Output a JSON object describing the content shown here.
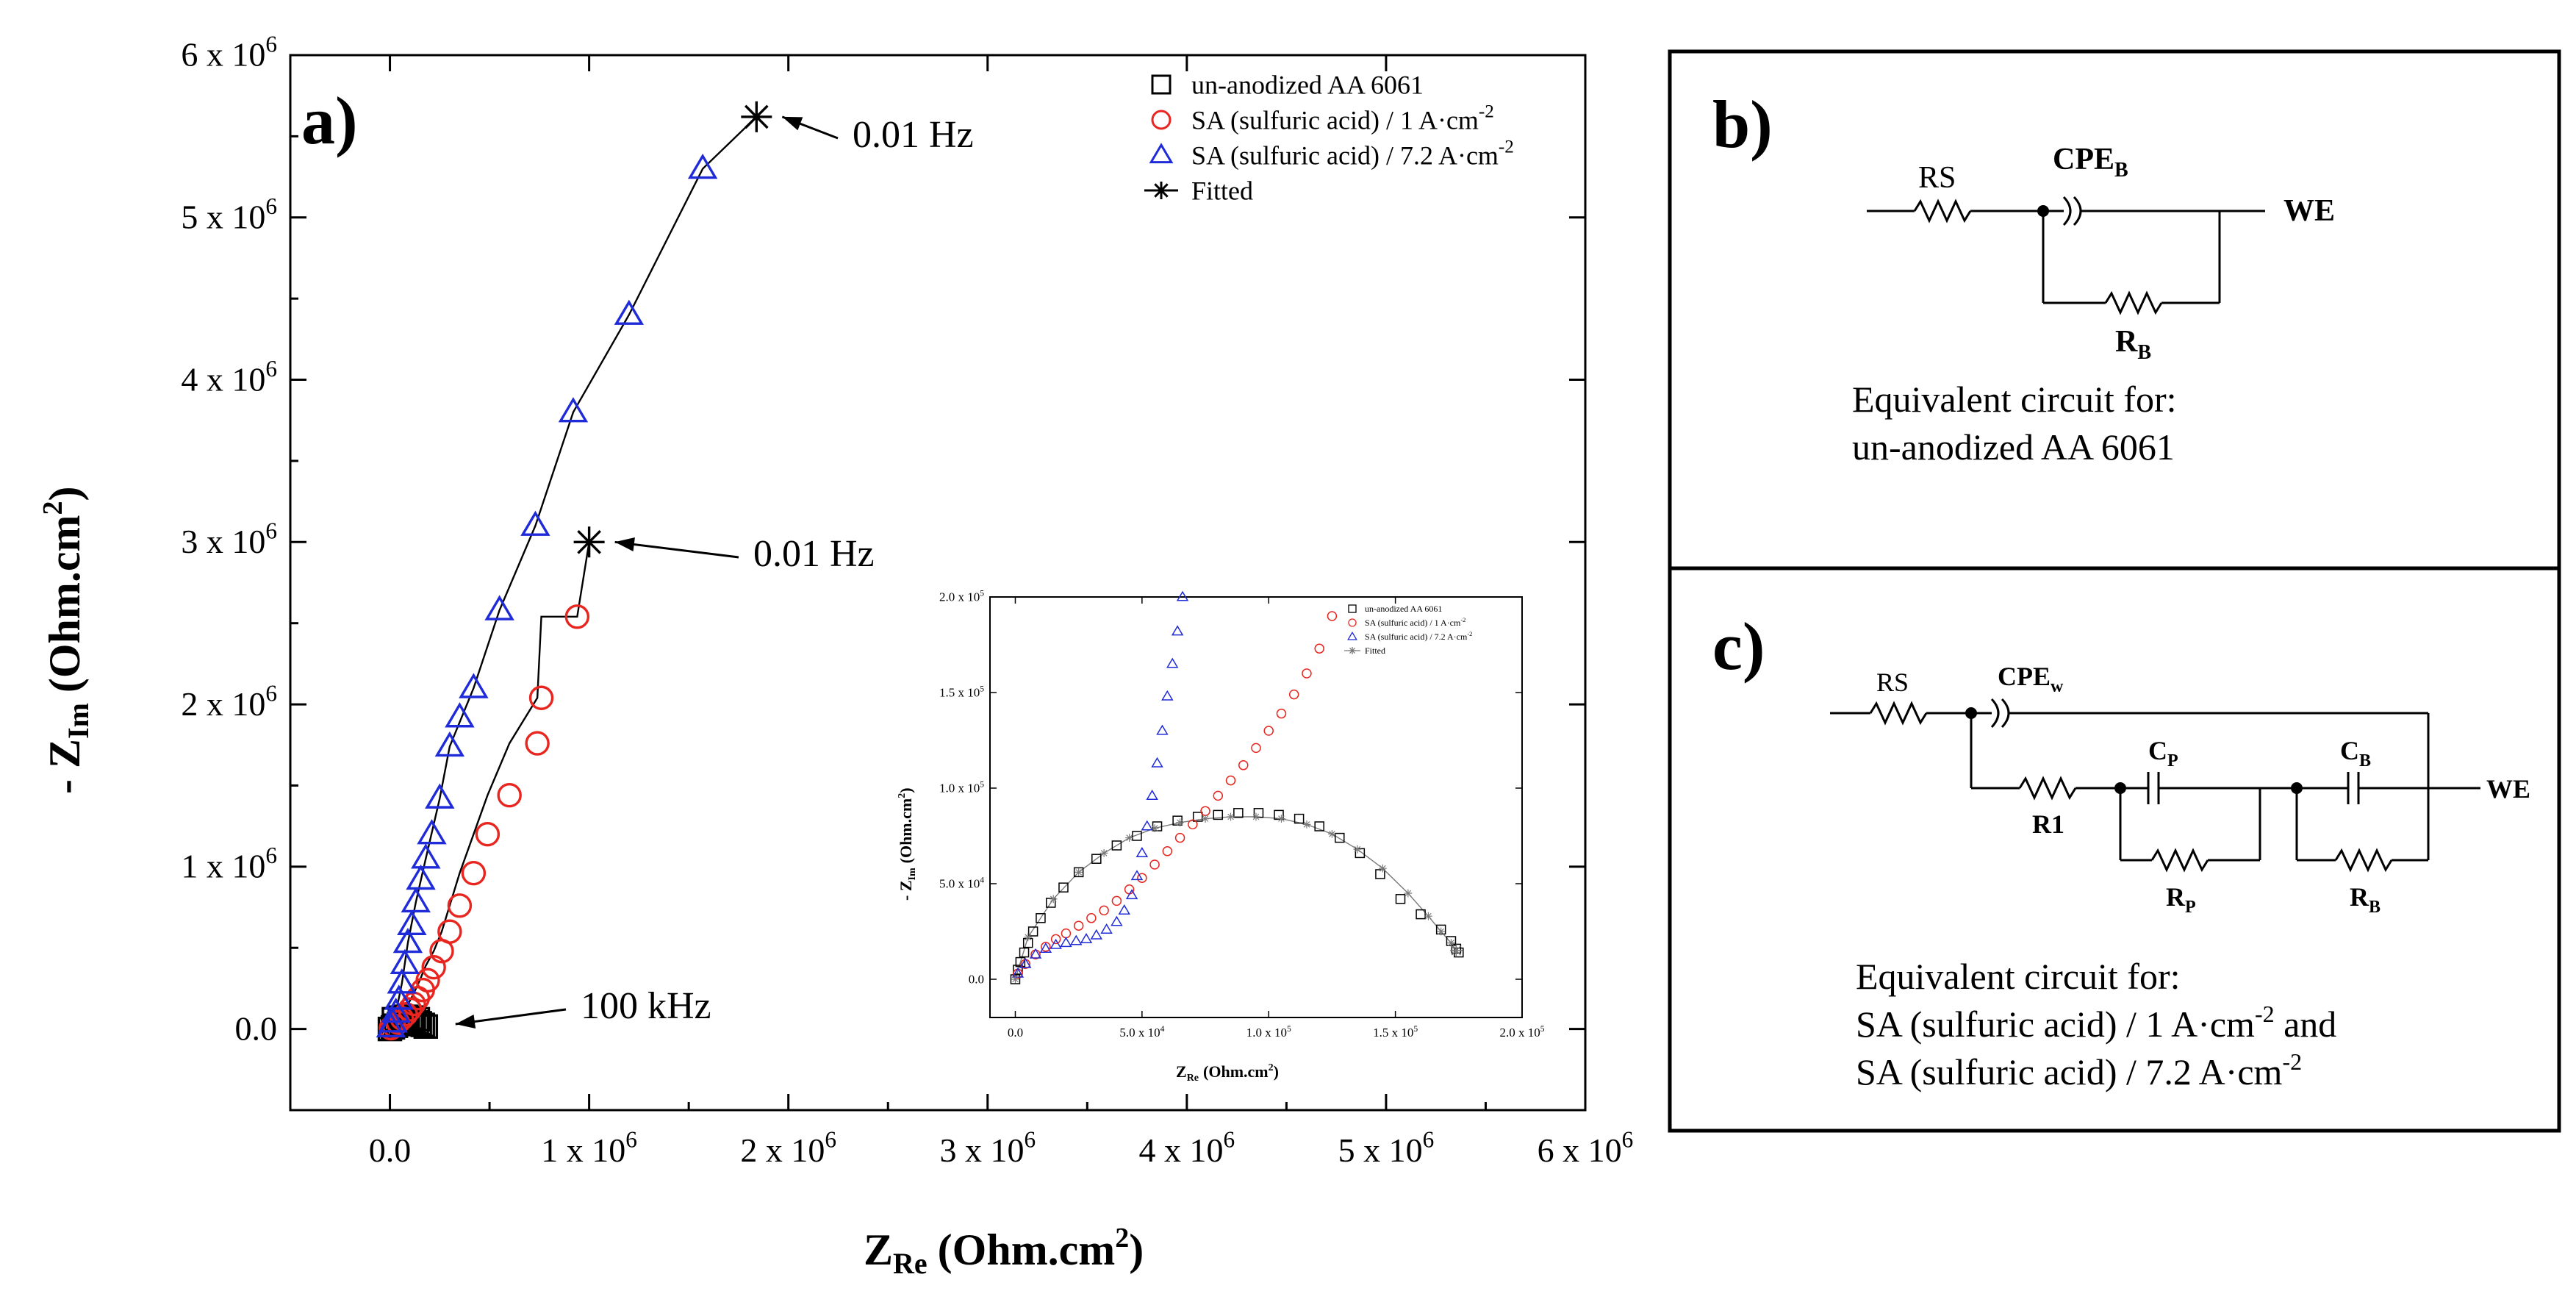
{
  "chart_data": [
    {
      "type": "scatter",
      "panel": "a)",
      "xlabel": "Z",
      "xlabel_sub": "Re",
      "xlabel_unit": "(Ohm.cm",
      "xlabel_unit_sup": "2",
      "xlabel_close": ")",
      "ylabel": "- Z",
      "ylabel_sub": "Im",
      "ylabel_unit": "(Ohm.cm",
      "ylabel_unit_sup": "2",
      "ylabel_close": ")",
      "xlim": [
        -500000,
        6000000
      ],
      "ylim": [
        -500000,
        6000000
      ],
      "x_ticks": [
        {
          "v": 0,
          "label": "0.0",
          "exp": ""
        },
        {
          "v": 1000000,
          "label": "1 x 10",
          "exp": "6"
        },
        {
          "v": 2000000,
          "label": "2 x 10",
          "exp": "6"
        },
        {
          "v": 3000000,
          "label": "3 x 10",
          "exp": "6"
        },
        {
          "v": 4000000,
          "label": "4 x 10",
          "exp": "6"
        },
        {
          "v": 5000000,
          "label": "5 x 10",
          "exp": "6"
        },
        {
          "v": 6000000,
          "label": "6 x 10",
          "exp": "6"
        }
      ],
      "y_ticks": [
        {
          "v": 0,
          "label": "0.0",
          "exp": ""
        },
        {
          "v": 1000000,
          "label": "1 x 10",
          "exp": "6"
        },
        {
          "v": 2000000,
          "label": "2 x 10",
          "exp": "6"
        },
        {
          "v": 3000000,
          "label": "3 x 10",
          "exp": "6"
        },
        {
          "v": 4000000,
          "label": "4 x 10",
          "exp": "6"
        },
        {
          "v": 5000000,
          "label": "5 x 10",
          "exp": "6"
        },
        {
          "v": 6000000,
          "label": "6 x 10",
          "exp": "6"
        }
      ],
      "series": [
        {
          "name": "un-anodized AA 6061",
          "marker": "square",
          "color": "#000000",
          "x": [
            0,
            15000,
            30000,
            45000,
            60000,
            75000,
            90000,
            105000,
            120000,
            135000,
            150000,
            165000,
            180000,
            20000,
            50000,
            80000,
            110000,
            140000
          ],
          "y": [
            0,
            10000,
            20000,
            30000,
            40000,
            45000,
            50000,
            50000,
            45000,
            40000,
            35000,
            25000,
            15000,
            60000,
            70000,
            75000,
            70000,
            60000
          ]
        },
        {
          "name": "SA (sulfuric acid) / 1 A·cm",
          "name_sup": "-2",
          "marker": "circle",
          "color": "#e8251f",
          "x": [
            5000,
            20000,
            40000,
            60000,
            80000,
            100000,
            120000,
            140000,
            165000,
            190000,
            220000,
            260000,
            300000,
            350000,
            420000,
            490000,
            600000,
            740000,
            760000,
            940000
          ],
          "y": [
            5000,
            20000,
            40000,
            65000,
            90000,
            120000,
            155000,
            190000,
            240000,
            300000,
            380000,
            480000,
            600000,
            760000,
            960000,
            1200000,
            1440000,
            1760000,
            2040000,
            2540000
          ]
        },
        {
          "name": "SA (sulfuric acid) / 7.2 A·cm",
          "name_sup": "-2",
          "marker": "triangle",
          "color": "#1f2ad8",
          "x": [
            5000,
            15000,
            30000,
            45000,
            60000,
            75000,
            90000,
            110000,
            130000,
            155000,
            180000,
            210000,
            250000,
            300000,
            350000,
            420000,
            550000,
            730000,
            920000,
            1200000,
            1570000
          ],
          "y": [
            10000,
            40000,
            100000,
            180000,
            280000,
            400000,
            530000,
            640000,
            780000,
            920000,
            1050000,
            1200000,
            1420000,
            1740000,
            1920000,
            2100000,
            2580000,
            3100000,
            3800000,
            4400000,
            5300000
          ]
        },
        {
          "name": "Fitted",
          "marker": "star",
          "color": "#000000",
          "lines": [
            {
              "x": [
                0,
                30000,
                60000,
                90000,
                120000,
                150000,
                180000,
                220000,
                260000,
                300000,
                350000,
                420000,
                490000,
                600000,
                740000,
                760000,
                940000,
                1000000
              ],
              "y": [
                0,
                40000,
                90000,
                150000,
                220000,
                300000,
                390000,
                480000,
                600000,
                760000,
                960000,
                1200000,
                1440000,
                1760000,
                2040000,
                2540000,
                2540000,
                3000000
              ]
            },
            {
              "x": [
                0,
                15000,
                30000,
                60000,
                90000,
                130000,
                180000,
                250000,
                300000,
                420000,
                550000,
                730000,
                920000,
                1200000,
                1570000,
                1840000
              ],
              "y": [
                0,
                40000,
                100000,
                280000,
                530000,
                780000,
                1050000,
                1420000,
                1740000,
                2100000,
                2580000,
                3100000,
                3800000,
                4400000,
                5300000,
                5620000
              ]
            }
          ]
        }
      ],
      "annotations": [
        {
          "text": "0.01 Hz",
          "x": 1840000,
          "y": 5620000
        },
        {
          "text": "0.01 Hz",
          "x": 1000000,
          "y": 3000000
        },
        {
          "text": "100 kHz",
          "x": 200000,
          "y": 30000
        }
      ]
    },
    {
      "type": "scatter",
      "panel": "inset",
      "xlabel": "Z",
      "xlabel_sub": "Re",
      "xlabel_unit": "(Ohm.cm",
      "xlabel_unit_sup": "2",
      "xlabel_close": ")",
      "ylabel": "- Z",
      "ylabel_sub": "Im",
      "ylabel_unit": "(Ohm.cm",
      "ylabel_unit_sup": "2",
      "ylabel_close": ")",
      "xlim": [
        -10000,
        200000
      ],
      "ylim": [
        -20000,
        200000
      ],
      "x_ticks": [
        {
          "v": 0,
          "label": "0.0",
          "exp": ""
        },
        {
          "v": 50000,
          "label": "5.0 x 10",
          "exp": "4"
        },
        {
          "v": 100000,
          "label": "1.0 x 10",
          "exp": "5"
        },
        {
          "v": 150000,
          "label": "1.5 x 10",
          "exp": "5"
        },
        {
          "v": 200000,
          "label": "2.0 x 10",
          "exp": "5"
        }
      ],
      "y_ticks": [
        {
          "v": 0,
          "label": "0.0",
          "exp": ""
        },
        {
          "v": 50000,
          "label": "5.0 x 10",
          "exp": "4"
        },
        {
          "v": 100000,
          "label": "1.0 x 10",
          "exp": "5"
        },
        {
          "v": 150000,
          "label": "1.5 x 10",
          "exp": "5"
        },
        {
          "v": 200000,
          "label": "2.0 x 10",
          "exp": "5"
        }
      ],
      "series": [
        {
          "name": "un-anodized AA 6061",
          "marker": "square",
          "color": "#000000",
          "x": [
            0,
            1000,
            2000,
            3500,
            5000,
            7000,
            10000,
            14000,
            19000,
            25000,
            32000,
            40000,
            48000,
            56000,
            64000,
            72000,
            80000,
            88000,
            96000,
            104000,
            112000,
            120000,
            128000,
            136000,
            144000,
            152000,
            160000,
            168000,
            172000,
            174000,
            175000
          ],
          "y": [
            0,
            5000,
            9000,
            14000,
            19000,
            25000,
            32000,
            40000,
            48000,
            56000,
            63000,
            70000,
            75000,
            80000,
            83000,
            85000,
            86000,
            87000,
            87000,
            86000,
            84000,
            80000,
            74000,
            66000,
            55000,
            42000,
            34000,
            26000,
            20000,
            16000,
            14000
          ]
        },
        {
          "name": "SA (sulfuric acid) / 1 A·cm",
          "name_sup": "-2",
          "marker": "circle",
          "color": "#e8251f",
          "x": [
            1000,
            4000,
            8000,
            12000,
            16000,
            20000,
            25000,
            30000,
            35000,
            40000,
            45000,
            50000,
            55000,
            60000,
            65000,
            70000,
            75000,
            80000,
            85000,
            90000,
            95000,
            100000,
            105000,
            110000,
            115000,
            120000,
            125000
          ],
          "y": [
            3000,
            8000,
            13000,
            17000,
            21000,
            24000,
            28000,
            32000,
            36000,
            41000,
            47000,
            53000,
            60000,
            67000,
            74000,
            81000,
            88000,
            96000,
            104000,
            112000,
            121000,
            130000,
            139000,
            149000,
            160000,
            173000,
            190000
          ]
        },
        {
          "name": "SA (sulfuric acid) / 7.2 A·cm",
          "name_sup": "-2",
          "marker": "triangle",
          "color": "#1f2ad8",
          "x": [
            1000,
            4000,
            8000,
            12000,
            16000,
            20000,
            24000,
            28000,
            32000,
            36000,
            40000,
            43000,
            46000,
            48000,
            50000,
            52000,
            54000,
            56000,
            58000,
            60000,
            62000,
            64000,
            66000
          ],
          "y": [
            3000,
            8000,
            13000,
            16000,
            18000,
            19000,
            20000,
            21000,
            23000,
            26000,
            30000,
            36000,
            44000,
            54000,
            66000,
            80000,
            96000,
            113000,
            130000,
            148000,
            165000,
            182000,
            200000
          ]
        },
        {
          "name": "Fitted",
          "marker": "star",
          "color": "#7a7a7a",
          "x": [
            0,
            5000,
            15000,
            25000,
            35000,
            45000,
            55000,
            65000,
            75000,
            85000,
            95000,
            105000,
            115000,
            125000,
            135000,
            145000,
            155000,
            163000,
            168000,
            172000,
            174000
          ],
          "y": [
            0,
            22000,
            42000,
            56000,
            66000,
            74000,
            79000,
            82000,
            84000,
            85000,
            85000,
            84000,
            81000,
            76000,
            68000,
            58000,
            45000,
            33000,
            25000,
            19000,
            15000
          ]
        }
      ]
    }
  ],
  "panel_b": {
    "label": "b)",
    "rs": "RS",
    "cpe": "CPE",
    "cpe_sub": "B",
    "r": "R",
    "r_sub": "B",
    "we": "WE",
    "caption_line1": "Equivalent circuit for:",
    "caption_line2": "un-anodized AA 6061"
  },
  "panel_c": {
    "label": "c)",
    "rs": "RS",
    "cpe": "CPE",
    "cpe_sub": "w",
    "cp": "C",
    "cp_sub": "P",
    "cb": "C",
    "cb_sub": "B",
    "r1": "R1",
    "rp": "R",
    "rp_sub": "P",
    "rb": "R",
    "rb_sub": "B",
    "we": "WE",
    "caption_line1": "Equivalent circuit for:",
    "caption_line2a": "SA (sulfuric acid) / 1 A·cm",
    "caption_line2_sup": "-2",
    "caption_line2b": " and",
    "caption_line3a": "SA (sulfuric acid) / 7.2 A·cm",
    "caption_line3_sup": "-2"
  }
}
